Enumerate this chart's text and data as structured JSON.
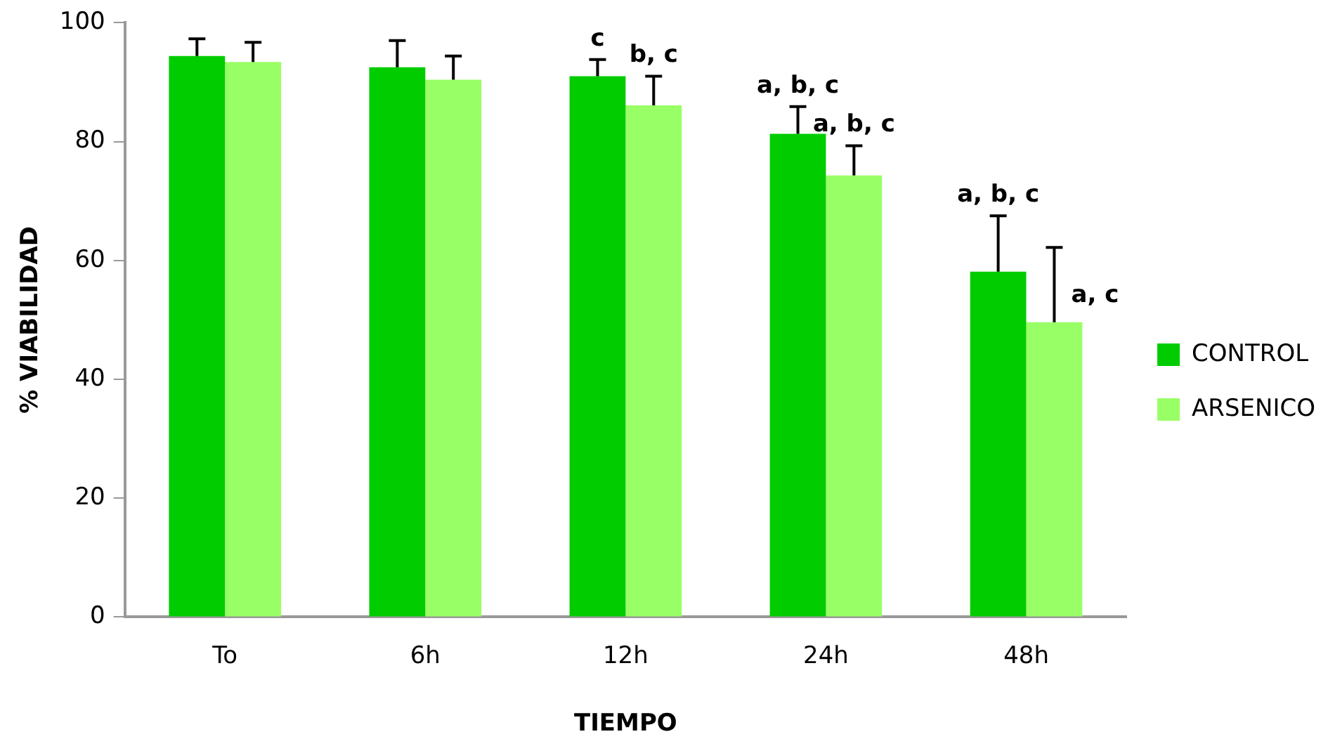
{
  "chart_data": {
    "type": "bar",
    "xlabel": "TIEMPO",
    "ylabel": "% VIABILIDAD",
    "categories": [
      "To",
      "6h",
      "12h",
      "24h",
      "48h"
    ],
    "series": [
      {
        "name": "CONTROL",
        "color": "#00cc00",
        "values": [
          94.4,
          92.5,
          91.0,
          81.3,
          58.1
        ],
        "errors": [
          [
            94.4,
            97.3
          ],
          [
            92.5,
            97.0
          ],
          [
            91.0,
            93.8
          ],
          [
            81.3,
            85.9
          ],
          [
            58.1,
            67.5
          ]
        ],
        "value_labels": [
          null,
          null,
          "c",
          "a, b, c",
          "a, b, c"
        ]
      },
      {
        "name": "ARSENICO",
        "color": "#99ff66",
        "values": [
          93.4,
          90.4,
          86.1,
          74.3,
          49.6
        ],
        "errors": [
          [
            93.4,
            96.7
          ],
          [
            90.4,
            94.4
          ],
          [
            86.1,
            91.0
          ],
          [
            74.3,
            79.3
          ],
          [
            49.6,
            62.2
          ]
        ],
        "value_labels": [
          null,
          null,
          "b, c",
          "a, b, c",
          "a, c"
        ]
      }
    ],
    "ylim": [
      0,
      100
    ],
    "yticks": [
      0,
      20,
      40,
      60,
      80,
      100
    ],
    "grid": false,
    "legend": "right"
  }
}
